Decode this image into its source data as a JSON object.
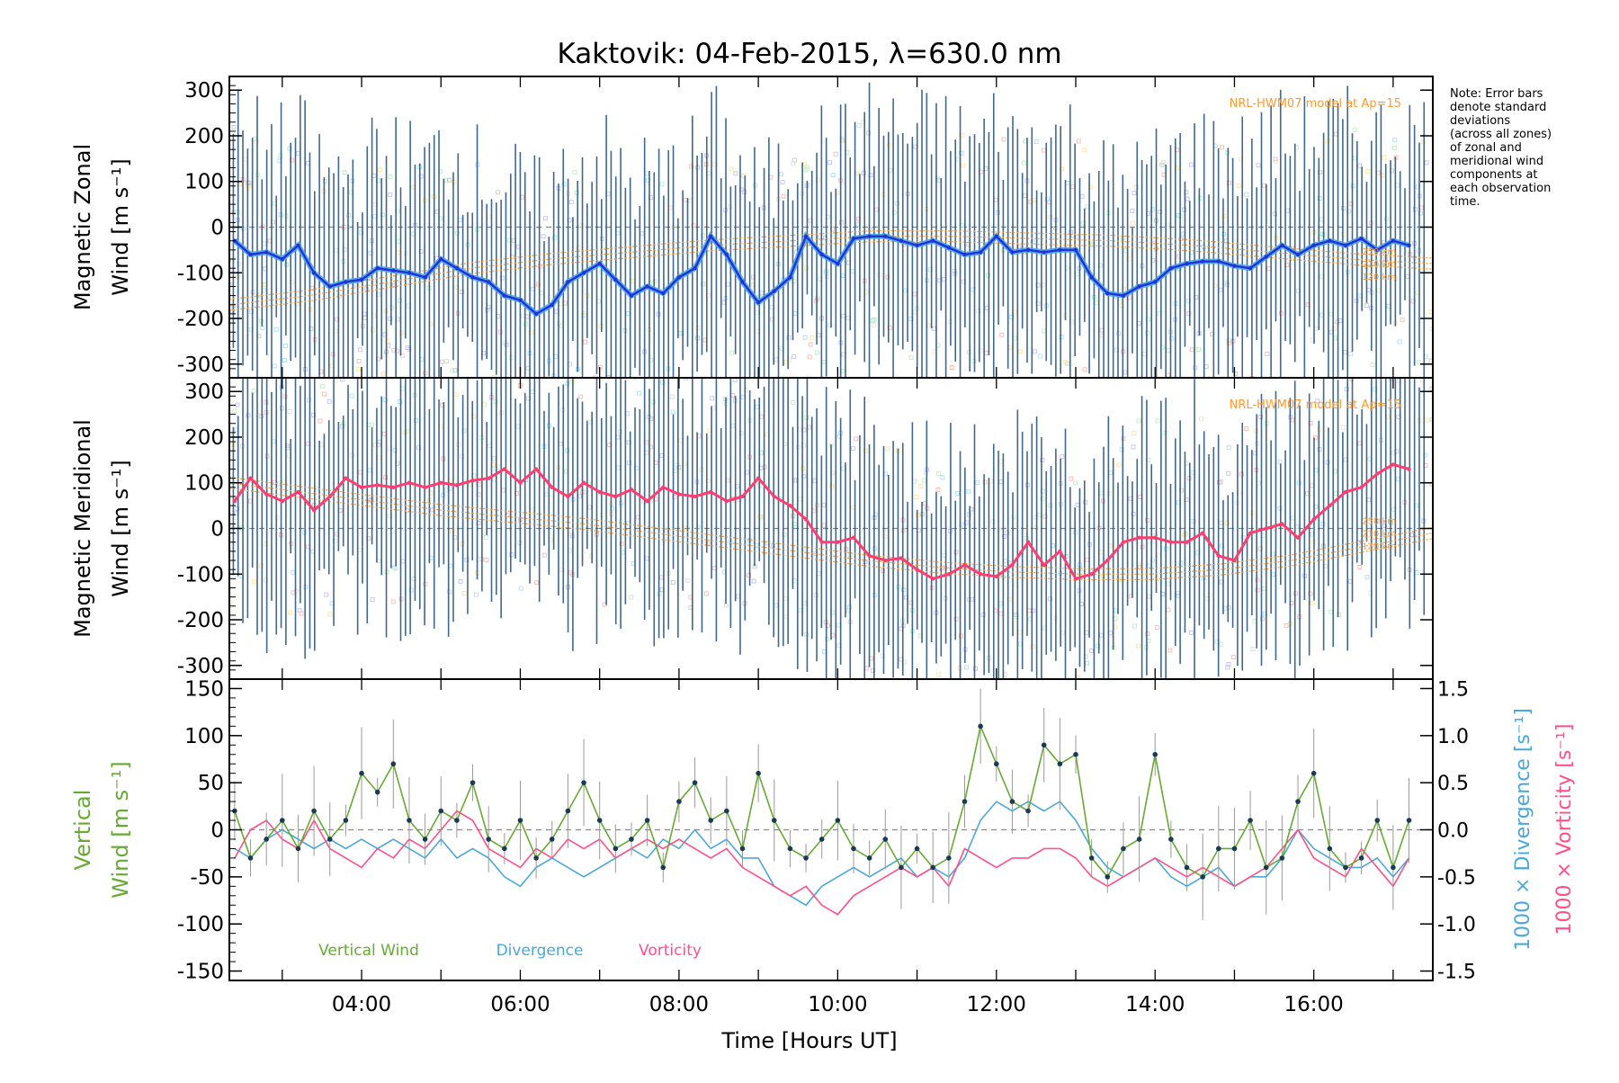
{
  "title": "Kaktovik: 04-Feb-2015, λ=630.0 nm",
  "note": [
    "Note: Error bars",
    "denote standard",
    "deviations",
    "(across all zones)",
    "of zonal and",
    "meridional wind",
    "components at",
    "each observation",
    "time."
  ],
  "x_axis": {
    "label": "Time [Hours UT]",
    "range": [
      "02:20",
      "17:30"
    ],
    "ticks": [
      "04:00",
      "06:00",
      "08:00",
      "10:00",
      "12:00",
      "14:00",
      "16:00"
    ]
  },
  "colors": {
    "zonal_line": "#2233dd",
    "zonal_line_light": "#4aa8e0",
    "meridional_line": "#ff3d6e",
    "error_bar": "#1f4e79",
    "model": "#ff9a2e",
    "vertical": "#66aa33",
    "divergence": "#4aa8d8",
    "vorticity": "#ff4f86",
    "vertical_err": "#999999"
  },
  "chart_data": [
    {
      "type": "line",
      "panel": "zonal",
      "ylabel": [
        "Magnetic Zonal",
        "Wind [m s⁻¹]"
      ],
      "ylim": [
        -330,
        330
      ],
      "yticks": [
        "300",
        "200",
        "100",
        "0",
        "-100",
        "-200",
        "-300"
      ],
      "model_label": "NRL-HWM07 model at Ap=15",
      "model_heights": [
        "250 km",
        "210 km",
        "120 km"
      ],
      "x": [
        2.4,
        2.6,
        2.8,
        3.0,
        3.2,
        3.4,
        3.6,
        3.8,
        4.0,
        4.2,
        4.4,
        4.6,
        4.8,
        5.0,
        5.2,
        5.4,
        5.6,
        5.8,
        6.0,
        6.2,
        6.4,
        6.6,
        6.8,
        7.0,
        7.2,
        7.4,
        7.6,
        7.8,
        8.0,
        8.2,
        8.4,
        8.6,
        8.8,
        9.0,
        9.2,
        9.4,
        9.6,
        9.8,
        10.0,
        10.2,
        10.4,
        10.6,
        10.8,
        11.0,
        11.2,
        11.4,
        11.6,
        11.8,
        12.0,
        12.2,
        12.4,
        12.6,
        12.8,
        13.0,
        13.2,
        13.4,
        13.6,
        13.8,
        14.0,
        14.2,
        14.4,
        14.6,
        14.8,
        15.0,
        15.2,
        15.4,
        15.6,
        15.8,
        16.0,
        16.2,
        16.4,
        16.6,
        16.8,
        17.0,
        17.2
      ],
      "series": [
        {
          "values": [
            -30,
            -60,
            -55,
            -70,
            -40,
            -100,
            -130,
            -120,
            -115,
            -90,
            -95,
            -100,
            -110,
            -70,
            -90,
            -110,
            -120,
            -150,
            -160,
            -190,
            -170,
            -120,
            -100,
            -80,
            -115,
            -150,
            -130,
            -145,
            -110,
            -90,
            -20,
            -60,
            -120,
            -165,
            -140,
            -110,
            -20,
            -60,
            -80,
            -25,
            -20,
            -20,
            -30,
            -40,
            -30,
            -45,
            -60,
            -55,
            -20,
            -55,
            -50,
            -55,
            -50,
            -50,
            -110,
            -145,
            -150,
            -130,
            -120,
            -90,
            -80,
            -75,
            -75,
            -85,
            -90,
            -65,
            -40,
            -60,
            -40,
            -30,
            -40,
            -25,
            -50,
            -30,
            -40
          ]
        }
      ],
      "model": [
        -170,
        -150,
        -120,
        -90,
        -70,
        -55,
        -40,
        -30,
        -20,
        -20,
        -25,
        -30,
        -40,
        -55,
        -70,
        -80
      ]
    },
    {
      "type": "line",
      "panel": "meridional",
      "ylabel": [
        "Magnetic Meridional",
        "Wind [m s⁻¹]"
      ],
      "ylim": [
        -330,
        330
      ],
      "yticks": [
        "300",
        "200",
        "100",
        "0",
        "-100",
        "-200",
        "-300"
      ],
      "model_label": "NRL-HWM07 model at Ap=15",
      "model_heights": [
        "250 km",
        "210 km",
        "120 km"
      ],
      "x": [
        2.4,
        2.6,
        2.8,
        3.0,
        3.2,
        3.4,
        3.6,
        3.8,
        4.0,
        4.2,
        4.4,
        4.6,
        4.8,
        5.0,
        5.2,
        5.4,
        5.6,
        5.8,
        6.0,
        6.2,
        6.4,
        6.6,
        6.8,
        7.0,
        7.2,
        7.4,
        7.6,
        7.8,
        8.0,
        8.2,
        8.4,
        8.6,
        8.8,
        9.0,
        9.2,
        9.4,
        9.6,
        9.8,
        10.0,
        10.2,
        10.4,
        10.6,
        10.8,
        11.0,
        11.2,
        11.4,
        11.6,
        11.8,
        12.0,
        12.2,
        12.4,
        12.6,
        12.8,
        13.0,
        13.2,
        13.4,
        13.6,
        13.8,
        14.0,
        14.2,
        14.4,
        14.6,
        14.8,
        15.0,
        15.2,
        15.4,
        15.6,
        15.8,
        16.0,
        16.2,
        16.4,
        16.6,
        16.8,
        17.0,
        17.2
      ],
      "series": [
        {
          "values": [
            60,
            110,
            75,
            60,
            80,
            40,
            70,
            110,
            90,
            95,
            90,
            100,
            90,
            100,
            95,
            105,
            110,
            130,
            100,
            130,
            90,
            70,
            100,
            80,
            70,
            85,
            60,
            90,
            75,
            70,
            80,
            60,
            70,
            110,
            70,
            50,
            20,
            -30,
            -30,
            -20,
            -60,
            -70,
            -65,
            -90,
            -110,
            -100,
            -80,
            -100,
            -105,
            -80,
            -30,
            -80,
            -50,
            -110,
            -100,
            -70,
            -30,
            -20,
            -20,
            -30,
            -30,
            -10,
            -60,
            -70,
            -10,
            0,
            10,
            -20,
            20,
            50,
            80,
            90,
            120,
            140,
            130
          ]
        }
      ],
      "model": [
        100,
        80,
        60,
        40,
        25,
        10,
        -10,
        -30,
        -50,
        -70,
        -85,
        -95,
        -100,
        -100,
        -90,
        -70,
        -40,
        -10
      ]
    },
    {
      "type": "line",
      "panel": "vertical",
      "ylabel": [
        "Vertical",
        "Wind [m s⁻¹]"
      ],
      "ylim": [
        -160,
        160
      ],
      "yticks": [
        "150",
        "100",
        "50",
        "0",
        "-50",
        "-100",
        "-150"
      ],
      "y2label_div": "1000 × Divergence [s⁻¹]",
      "y2label_vor": "1000 × Vorticity [s⁻¹]",
      "y2lim": [
        -1.6,
        1.6
      ],
      "y2ticks": [
        "1.5",
        "1.0",
        "0.5",
        "0.0",
        "-0.5",
        "-1.0",
        "-1.5"
      ],
      "legend": [
        "Vertical Wind",
        "Divergence",
        "Vorticity"
      ],
      "x": [
        2.4,
        2.6,
        2.8,
        3.0,
        3.2,
        3.4,
        3.6,
        3.8,
        4.0,
        4.2,
        4.4,
        4.6,
        4.8,
        5.0,
        5.2,
        5.4,
        5.6,
        5.8,
        6.0,
        6.2,
        6.4,
        6.6,
        6.8,
        7.0,
        7.2,
        7.4,
        7.6,
        7.8,
        8.0,
        8.2,
        8.4,
        8.6,
        8.8,
        9.0,
        9.2,
        9.4,
        9.6,
        9.8,
        10.0,
        10.2,
        10.4,
        10.6,
        10.8,
        11.0,
        11.2,
        11.4,
        11.6,
        11.8,
        12.0,
        12.2,
        12.4,
        12.6,
        12.8,
        13.0,
        13.2,
        13.4,
        13.6,
        13.8,
        14.0,
        14.2,
        14.4,
        14.6,
        14.8,
        15.0,
        15.2,
        15.4,
        15.6,
        15.8,
        16.0,
        16.2,
        16.4,
        16.6,
        16.8,
        17.0,
        17.2
      ],
      "series": [
        {
          "name": "Vertical Wind",
          "values": [
            20,
            -30,
            -10,
            10,
            -20,
            20,
            -10,
            10,
            60,
            40,
            70,
            10,
            -10,
            20,
            10,
            50,
            -10,
            -20,
            10,
            -30,
            -10,
            20,
            50,
            10,
            -20,
            -10,
            10,
            -40,
            30,
            50,
            10,
            20,
            -20,
            60,
            10,
            -20,
            -30,
            -10,
            10,
            -20,
            -30,
            -10,
            -40,
            -20,
            -40,
            -30,
            30,
            110,
            70,
            30,
            20,
            90,
            70,
            80,
            -30,
            -50,
            -20,
            -10,
            80,
            -10,
            -40,
            -50,
            -20,
            -20,
            10,
            -40,
            -30,
            30,
            60,
            -20,
            -40,
            -30,
            10,
            -40,
            10
          ]
        },
        {
          "name": "Divergence",
          "values": [
            -0.2,
            -0.3,
            -0.1,
            0.0,
            -0.1,
            -0.2,
            -0.1,
            -0.2,
            -0.1,
            -0.2,
            -0.1,
            -0.2,
            -0.3,
            -0.1,
            -0.3,
            -0.2,
            -0.3,
            -0.5,
            -0.6,
            -0.4,
            -0.3,
            -0.4,
            -0.5,
            -0.4,
            -0.3,
            -0.2,
            -0.3,
            -0.1,
            -0.2,
            0.0,
            -0.2,
            -0.1,
            -0.3,
            -0.3,
            -0.6,
            -0.7,
            -0.8,
            -0.6,
            -0.5,
            -0.4,
            -0.5,
            -0.4,
            -0.3,
            -0.5,
            -0.4,
            -0.5,
            -0.3,
            0.1,
            0.3,
            0.2,
            0.3,
            0.2,
            0.3,
            0.1,
            -0.2,
            -0.4,
            -0.5,
            -0.4,
            -0.3,
            -0.5,
            -0.6,
            -0.5,
            -0.4,
            -0.6,
            -0.5,
            -0.5,
            -0.3,
            0.0,
            -0.2,
            -0.3,
            -0.4,
            -0.4,
            -0.3,
            -0.5,
            -0.3
          ]
        },
        {
          "name": "Vorticity",
          "values": [
            -0.3,
            0.0,
            0.1,
            -0.1,
            -0.2,
            0.1,
            -0.2,
            -0.3,
            -0.4,
            -0.2,
            -0.3,
            -0.1,
            -0.2,
            0.0,
            0.2,
            0.1,
            -0.2,
            -0.3,
            -0.4,
            -0.2,
            -0.3,
            -0.1,
            -0.2,
            -0.1,
            -0.3,
            -0.2,
            -0.1,
            -0.2,
            -0.1,
            -0.2,
            -0.3,
            -0.2,
            -0.4,
            -0.5,
            -0.6,
            -0.7,
            -0.6,
            -0.8,
            -0.9,
            -0.7,
            -0.6,
            -0.5,
            -0.4,
            -0.5,
            -0.4,
            -0.6,
            -0.2,
            -0.3,
            -0.4,
            -0.3,
            -0.3,
            -0.2,
            -0.2,
            -0.3,
            -0.5,
            -0.6,
            -0.5,
            -0.4,
            -0.3,
            -0.4,
            -0.5,
            -0.4,
            -0.5,
            -0.6,
            -0.5,
            -0.4,
            -0.2,
            0.0,
            -0.3,
            -0.4,
            -0.5,
            -0.2,
            -0.4,
            -0.6,
            -0.3
          ]
        }
      ]
    }
  ]
}
